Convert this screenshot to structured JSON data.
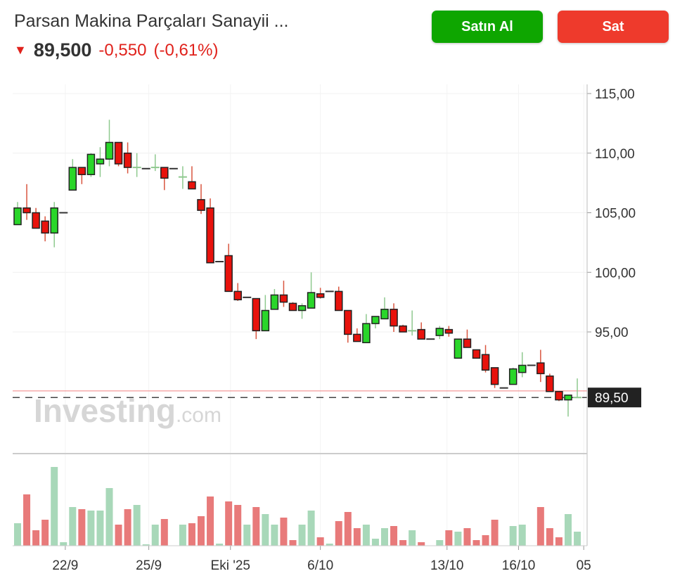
{
  "header": {
    "title": "Parsan Makina Parçaları Sanayii ...",
    "direction_icon": "arrow-down-icon",
    "price": "89,500",
    "change": "-0,550",
    "change_pct": "(-0,61%)",
    "buy_label": "Satın Al",
    "sell_label": "Sat"
  },
  "watermark": "Investing.com",
  "colors": {
    "up": "#2ad62a",
    "down": "#e8120c",
    "vol_up": "#a8d8b9",
    "vol_down": "#e87a7a",
    "buy": "#0ea600",
    "sell": "#ee3a2c"
  },
  "chart_data": {
    "type": "candlestick",
    "ylim": [
      80,
      117
    ],
    "y_ticks": [
      "115,00",
      "110,00",
      "105,00",
      "100,00",
      "95,00"
    ],
    "y_tick_values": [
      115,
      110,
      105,
      100,
      95
    ],
    "x_ticks": [
      {
        "label": "22/9",
        "index": 5.2
      },
      {
        "label": "25/9",
        "index": 14.3
      },
      {
        "label": "Eki '25",
        "index": 23.2
      },
      {
        "label": "6/10",
        "index": 33
      },
      {
        "label": "13/10",
        "index": 46.8
      },
      {
        "label": "16/10",
        "index": 54.6
      },
      {
        "label": "05",
        "index": 61.7
      }
    ],
    "last_price": 89.5,
    "last_price_label": "89,50",
    "previous_close": 90.05,
    "grid": true,
    "candles": [
      [
        104.0,
        105.9,
        104.0,
        105.4
      ],
      [
        105.4,
        107.4,
        104.4,
        105.0
      ],
      [
        105.0,
        105.4,
        103.7,
        103.7
      ],
      [
        104.3,
        104.7,
        102.6,
        103.3
      ],
      [
        103.3,
        105.9,
        102.1,
        105.4
      ],
      [
        105.0,
        105.0,
        105.0,
        105.0
      ],
      [
        106.9,
        109.5,
        106.9,
        108.8
      ],
      [
        108.8,
        108.8,
        107.4,
        108.2
      ],
      [
        108.2,
        110.0,
        108.0,
        109.9
      ],
      [
        109.1,
        110.5,
        108.0,
        109.5
      ],
      [
        109.5,
        112.8,
        108.9,
        110.9
      ],
      [
        110.9,
        110.9,
        108.9,
        109.1
      ],
      [
        110.0,
        110.9,
        108.3,
        108.8
      ],
      [
        108.8,
        110.0,
        108.0,
        108.8
      ],
      [
        108.7,
        108.7,
        108.7,
        108.7
      ],
      [
        108.8,
        109.9,
        108.5,
        108.8
      ],
      [
        108.8,
        108.8,
        106.9,
        107.9
      ],
      [
        108.7,
        108.7,
        108.7,
        108.7
      ],
      [
        108.0,
        108.9,
        107.0,
        108.0
      ],
      [
        107.6,
        108.9,
        107.0,
        107.0
      ],
      [
        106.1,
        107.4,
        104.9,
        105.2
      ],
      [
        105.4,
        106.2,
        100.8,
        100.8
      ],
      [
        100.9,
        100.9,
        100.9,
        100.9
      ],
      [
        101.4,
        102.4,
        98.4,
        98.4
      ],
      [
        98.4,
        99.1,
        97.6,
        97.7
      ],
      [
        97.9,
        97.9,
        97.9,
        97.9
      ],
      [
        97.8,
        97.8,
        94.4,
        95.1
      ],
      [
        95.1,
        98.1,
        95.1,
        96.8
      ],
      [
        96.9,
        98.6,
        96.9,
        98.1
      ],
      [
        98.1,
        99.3,
        97.1,
        97.5
      ],
      [
        97.4,
        97.5,
        96.8,
        96.8
      ],
      [
        96.8,
        97.4,
        96.1,
        97.2
      ],
      [
        97.0,
        100.0,
        97.0,
        98.3
      ],
      [
        98.2,
        98.7,
        97.8,
        97.9
      ],
      [
        98.4,
        98.4,
        98.4,
        98.4
      ],
      [
        98.4,
        98.8,
        96.8,
        96.8
      ],
      [
        96.8,
        96.8,
        94.1,
        94.8
      ],
      [
        94.8,
        95.3,
        94.2,
        94.2
      ],
      [
        94.1,
        96.5,
        94.1,
        95.7
      ],
      [
        95.7,
        96.3,
        95.3,
        96.3
      ],
      [
        96.1,
        97.9,
        96.1,
        96.9
      ],
      [
        96.9,
        97.4,
        95.0,
        95.5
      ],
      [
        95.5,
        95.6,
        95.0,
        95.0
      ],
      [
        95.1,
        96.8,
        94.7,
        95.1
      ],
      [
        95.2,
        95.8,
        94.4,
        94.4
      ],
      [
        94.4,
        94.4,
        94.4,
        94.4
      ],
      [
        94.7,
        95.5,
        94.4,
        95.3
      ],
      [
        95.2,
        95.5,
        94.6,
        94.9
      ],
      [
        92.8,
        94.4,
        92.8,
        94.4
      ],
      [
        94.4,
        95.2,
        93.7,
        93.7
      ],
      [
        93.5,
        93.5,
        92.8,
        92.8
      ],
      [
        93.1,
        93.9,
        91.6,
        91.8
      ],
      [
        92.0,
        92.0,
        90.3,
        90.6
      ],
      [
        90.3,
        90.3,
        90.3,
        90.3
      ],
      [
        90.6,
        92.0,
        90.6,
        91.9
      ],
      [
        91.6,
        93.3,
        91.2,
        92.2
      ],
      [
        92.2,
        92.2,
        92.2,
        92.2
      ],
      [
        92.4,
        93.5,
        90.8,
        91.5
      ],
      [
        91.3,
        91.5,
        90.0,
        90.0
      ],
      [
        90.0,
        90.0,
        89.2,
        89.3
      ],
      [
        89.3,
        89.7,
        87.9,
        89.7
      ],
      [
        89.5,
        91.1,
        89.5,
        89.5
      ]
    ],
    "volume": [
      32,
      73,
      22,
      37,
      112,
      5,
      55,
      52,
      50,
      50,
      82,
      30,
      52,
      58,
      2,
      30,
      38,
      0,
      30,
      32,
      42,
      70,
      3,
      63,
      58,
      30,
      55,
      45,
      30,
      40,
      8,
      30,
      50,
      12,
      3,
      35,
      48,
      25,
      30,
      10,
      25,
      28,
      8,
      22,
      5,
      0,
      8,
      22,
      20,
      25,
      8,
      15,
      37,
      0,
      28,
      30,
      0,
      55,
      25,
      12,
      45,
      20
    ]
  }
}
